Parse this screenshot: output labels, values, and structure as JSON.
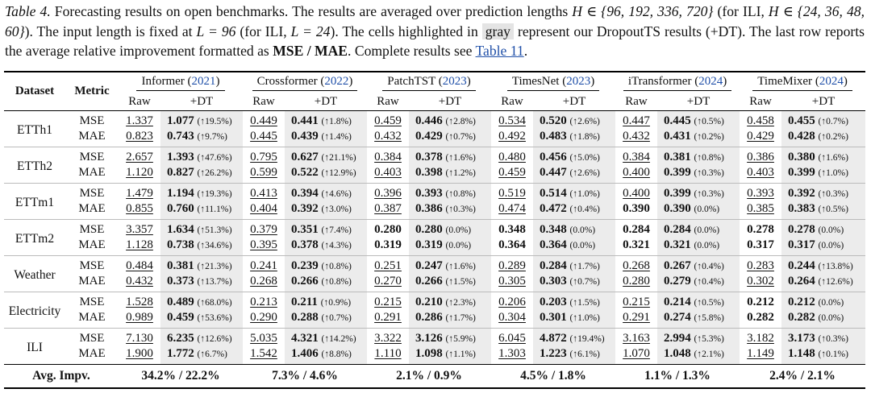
{
  "caption": {
    "label": "Table 4.",
    "part1": " Forecasting results on open benchmarks. The results are averaged over prediction lengths ",
    "math1": "H ∈ {96, 192, 336, 720}",
    "part2": " (for ILI, ",
    "math2": "H ∈ {24, 36, 48, 60}",
    "part3": "). The input length is fixed at ",
    "math3": "L = 96",
    "part4": " (for ILI, ",
    "math4": "L = 24",
    "part5": "). The cells highlighted in ",
    "highlight_word": "gray",
    "part6": " represent our DropoutTS results (+DT). The last row reports the average relative improvement formatted as ",
    "format_bold": "MSE / MAE",
    "part7": ". Complete results see ",
    "link": "Table 11",
    "part8": "."
  },
  "header": {
    "dataset": "Dataset",
    "metric": "Metric",
    "raw": "Raw",
    "dt": "+DT",
    "models": [
      {
        "name": "Informer",
        "year": "2021"
      },
      {
        "name": "Crossformer",
        "year": "2022"
      },
      {
        "name": "PatchTST",
        "year": "2023"
      },
      {
        "name": "TimesNet",
        "year": "2023"
      },
      {
        "name": "iTransformer",
        "year": "2024"
      },
      {
        "name": "TimeMixer",
        "year": "2024"
      }
    ]
  },
  "rows": [
    {
      "dataset": "ETTh1",
      "metrics": [
        {
          "metric": "MSE",
          "cells": [
            {
              "raw": "1.337",
              "dt": "1.077",
              "imp": "(↑19.5%)"
            },
            {
              "raw": "0.449",
              "dt": "0.441",
              "imp": "(↑1.8%)"
            },
            {
              "raw": "0.459",
              "dt": "0.446",
              "imp": "(↑2.8%)"
            },
            {
              "raw": "0.534",
              "dt": "0.520",
              "imp": "(↑2.6%)"
            },
            {
              "raw": "0.447",
              "dt": "0.445",
              "imp": "(↑0.5%)"
            },
            {
              "raw": "0.458",
              "dt": "0.455",
              "imp": "(↑0.7%)"
            }
          ]
        },
        {
          "metric": "MAE",
          "cells": [
            {
              "raw": "0.823",
              "dt": "0.743",
              "imp": "(↑9.7%)"
            },
            {
              "raw": "0.445",
              "dt": "0.439",
              "imp": "(↑1.4%)"
            },
            {
              "raw": "0.432",
              "dt": "0.429",
              "imp": "(↑0.7%)"
            },
            {
              "raw": "0.492",
              "dt": "0.483",
              "imp": "(↑1.8%)"
            },
            {
              "raw": "0.432",
              "dt": "0.431",
              "imp": "(↑0.2%)"
            },
            {
              "raw": "0.429",
              "dt": "0.428",
              "imp": "(↑0.2%)"
            }
          ]
        }
      ]
    },
    {
      "dataset": "ETTh2",
      "metrics": [
        {
          "metric": "MSE",
          "cells": [
            {
              "raw": "2.657",
              "dt": "1.393",
              "imp": "(↑47.6%)"
            },
            {
              "raw": "0.795",
              "dt": "0.627",
              "imp": "(↑21.1%)"
            },
            {
              "raw": "0.384",
              "dt": "0.378",
              "imp": "(↑1.6%)"
            },
            {
              "raw": "0.480",
              "dt": "0.456",
              "imp": "(↑5.0%)"
            },
            {
              "raw": "0.384",
              "dt": "0.381",
              "imp": "(↑0.8%)"
            },
            {
              "raw": "0.386",
              "dt": "0.380",
              "imp": "(↑1.6%)"
            }
          ]
        },
        {
          "metric": "MAE",
          "cells": [
            {
              "raw": "1.120",
              "dt": "0.827",
              "imp": "(↑26.2%)"
            },
            {
              "raw": "0.599",
              "dt": "0.522",
              "imp": "(↑12.9%)"
            },
            {
              "raw": "0.403",
              "dt": "0.398",
              "imp": "(↑1.2%)"
            },
            {
              "raw": "0.459",
              "dt": "0.447",
              "imp": "(↑2.6%)"
            },
            {
              "raw": "0.400",
              "dt": "0.399",
              "imp": "(↑0.3%)"
            },
            {
              "raw": "0.403",
              "dt": "0.399",
              "imp": "(↑1.0%)"
            }
          ]
        }
      ]
    },
    {
      "dataset": "ETTm1",
      "metrics": [
        {
          "metric": "MSE",
          "cells": [
            {
              "raw": "1.479",
              "dt": "1.194",
              "imp": "(↑19.3%)"
            },
            {
              "raw": "0.413",
              "dt": "0.394",
              "imp": "(↑4.6%)"
            },
            {
              "raw": "0.396",
              "dt": "0.393",
              "imp": "(↑0.8%)"
            },
            {
              "raw": "0.519",
              "dt": "0.514",
              "imp": "(↑1.0%)"
            },
            {
              "raw": "0.400",
              "dt": "0.399",
              "imp": "(↑0.3%)"
            },
            {
              "raw": "0.393",
              "dt": "0.392",
              "imp": "(↑0.3%)"
            }
          ]
        },
        {
          "metric": "MAE",
          "cells": [
            {
              "raw": "0.855",
              "dt": "0.760",
              "imp": "(↑11.1%)"
            },
            {
              "raw": "0.404",
              "dt": "0.392",
              "imp": "(↑3.0%)"
            },
            {
              "raw": "0.387",
              "dt": "0.386",
              "imp": "(↑0.3%)"
            },
            {
              "raw": "0.474",
              "dt": "0.472",
              "imp": "(↑0.4%)"
            },
            {
              "raw": "0.390",
              "rawBold": true,
              "dt": "0.390",
              "imp": "(0.0%)"
            },
            {
              "raw": "0.385",
              "dt": "0.383",
              "imp": "(↑0.5%)"
            }
          ]
        }
      ]
    },
    {
      "dataset": "ETTm2",
      "metrics": [
        {
          "metric": "MSE",
          "cells": [
            {
              "raw": "3.357",
              "dt": "1.634",
              "imp": "(↑51.3%)"
            },
            {
              "raw": "0.379",
              "dt": "0.351",
              "imp": "(↑7.4%)"
            },
            {
              "raw": "0.280",
              "rawBold": true,
              "dt": "0.280",
              "imp": "(0.0%)"
            },
            {
              "raw": "0.348",
              "rawBold": true,
              "dt": "0.348",
              "imp": "(0.0%)"
            },
            {
              "raw": "0.284",
              "rawBold": true,
              "dt": "0.284",
              "imp": "(0.0%)"
            },
            {
              "raw": "0.278",
              "rawBold": true,
              "dt": "0.278",
              "imp": "(0.0%)"
            }
          ]
        },
        {
          "metric": "MAE",
          "cells": [
            {
              "raw": "1.128",
              "dt": "0.738",
              "imp": "(↑34.6%)"
            },
            {
              "raw": "0.395",
              "dt": "0.378",
              "imp": "(↑4.3%)"
            },
            {
              "raw": "0.319",
              "rawBold": true,
              "dt": "0.319",
              "imp": "(0.0%)"
            },
            {
              "raw": "0.364",
              "rawBold": true,
              "dt": "0.364",
              "imp": "(0.0%)"
            },
            {
              "raw": "0.321",
              "rawBold": true,
              "dt": "0.321",
              "imp": "(0.0%)"
            },
            {
              "raw": "0.317",
              "rawBold": true,
              "dt": "0.317",
              "imp": "(0.0%)"
            }
          ]
        }
      ]
    },
    {
      "dataset": "Weather",
      "metrics": [
        {
          "metric": "MSE",
          "cells": [
            {
              "raw": "0.484",
              "dt": "0.381",
              "imp": "(↑21.3%)"
            },
            {
              "raw": "0.241",
              "dt": "0.239",
              "imp": "(↑0.8%)"
            },
            {
              "raw": "0.251",
              "dt": "0.247",
              "imp": "(↑1.6%)"
            },
            {
              "raw": "0.289",
              "dt": "0.284",
              "imp": "(↑1.7%)"
            },
            {
              "raw": "0.268",
              "dt": "0.267",
              "imp": "(↑0.4%)"
            },
            {
              "raw": "0.283",
              "dt": "0.244",
              "imp": "(↑13.8%)"
            }
          ]
        },
        {
          "metric": "MAE",
          "cells": [
            {
              "raw": "0.432",
              "dt": "0.373",
              "imp": "(↑13.7%)"
            },
            {
              "raw": "0.268",
              "dt": "0.266",
              "imp": "(↑0.8%)"
            },
            {
              "raw": "0.270",
              "dt": "0.266",
              "imp": "(↑1.5%)"
            },
            {
              "raw": "0.305",
              "dt": "0.303",
              "imp": "(↑0.7%)"
            },
            {
              "raw": "0.280",
              "dt": "0.279",
              "imp": "(↑0.4%)"
            },
            {
              "raw": "0.302",
              "dt": "0.264",
              "imp": "(↑12.6%)"
            }
          ]
        }
      ]
    },
    {
      "dataset": "Electricity",
      "metrics": [
        {
          "metric": "MSE",
          "cells": [
            {
              "raw": "1.528",
              "dt": "0.489",
              "imp": "(↑68.0%)"
            },
            {
              "raw": "0.213",
              "dt": "0.211",
              "imp": "(↑0.9%)"
            },
            {
              "raw": "0.215",
              "dt": "0.210",
              "imp": "(↑2.3%)"
            },
            {
              "raw": "0.206",
              "dt": "0.203",
              "imp": "(↑1.5%)"
            },
            {
              "raw": "0.215",
              "dt": "0.214",
              "imp": "(↑0.5%)"
            },
            {
              "raw": "0.212",
              "rawBold": true,
              "dt": "0.212",
              "imp": "(0.0%)"
            }
          ]
        },
        {
          "metric": "MAE",
          "cells": [
            {
              "raw": "0.989",
              "dt": "0.459",
              "imp": "(↑53.6%)"
            },
            {
              "raw": "0.290",
              "dt": "0.288",
              "imp": "(↑0.7%)"
            },
            {
              "raw": "0.291",
              "dt": "0.286",
              "imp": "(↑1.7%)"
            },
            {
              "raw": "0.304",
              "dt": "0.301",
              "imp": "(↑1.0%)"
            },
            {
              "raw": "0.291",
              "dt": "0.274",
              "imp": "(↑5.8%)"
            },
            {
              "raw": "0.282",
              "rawBold": true,
              "dt": "0.282",
              "imp": "(0.0%)"
            }
          ]
        }
      ]
    },
    {
      "dataset": "ILI",
      "metrics": [
        {
          "metric": "MSE",
          "cells": [
            {
              "raw": "7.130",
              "dt": "6.235",
              "imp": "(↑12.6%)"
            },
            {
              "raw": "5.035",
              "dt": "4.321",
              "imp": "(↑14.2%)"
            },
            {
              "raw": "3.322",
              "dt": "3.126",
              "imp": "(↑5.9%)"
            },
            {
              "raw": "6.045",
              "dt": "4.872",
              "imp": "(↑19.4%)"
            },
            {
              "raw": "3.163",
              "dt": "2.994",
              "imp": "(↑5.3%)"
            },
            {
              "raw": "3.182",
              "dt": "3.173",
              "imp": "(↑0.3%)"
            }
          ]
        },
        {
          "metric": "MAE",
          "cells": [
            {
              "raw": "1.900",
              "dt": "1.772",
              "imp": "(↑6.7%)"
            },
            {
              "raw": "1.542",
              "dt": "1.406",
              "imp": "(↑8.8%)"
            },
            {
              "raw": "1.110",
              "dt": "1.098",
              "imp": "(↑1.1%)"
            },
            {
              "raw": "1.303",
              "dt": "1.223",
              "imp": "(↑6.1%)"
            },
            {
              "raw": "1.070",
              "dt": "1.048",
              "imp": "(↑2.1%)"
            },
            {
              "raw": "1.149",
              "dt": "1.148",
              "imp": "(↑0.1%)"
            }
          ]
        }
      ]
    }
  ],
  "footer": {
    "label": "Avg. Impv.",
    "values": [
      "34.2% / 22.2%",
      "7.3% / 4.6%",
      "2.1% / 0.9%",
      "4.5% / 1.8%",
      "1.1% / 1.3%",
      "2.4% / 2.1%"
    ]
  },
  "colors": {
    "highlight": "#ececec",
    "link": "#1f4fa8"
  }
}
